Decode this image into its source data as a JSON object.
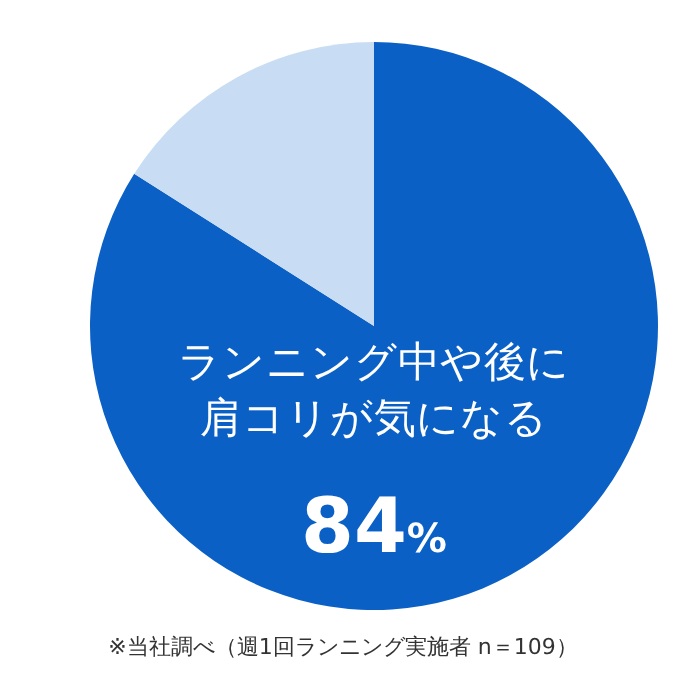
{
  "chart_data": {
    "type": "pie",
    "categories": [
      "ランニング中や後に肩コリが気になる",
      null
    ],
    "values": [
      84,
      16
    ],
    "colors": [
      "#0b60c6",
      "#c8ddf3"
    ],
    "value_labels": [
      "84%",
      null
    ],
    "annotations": [
      "※当社調べ（週1回ランニング実施者 n＝109）"
    ]
  }
}
